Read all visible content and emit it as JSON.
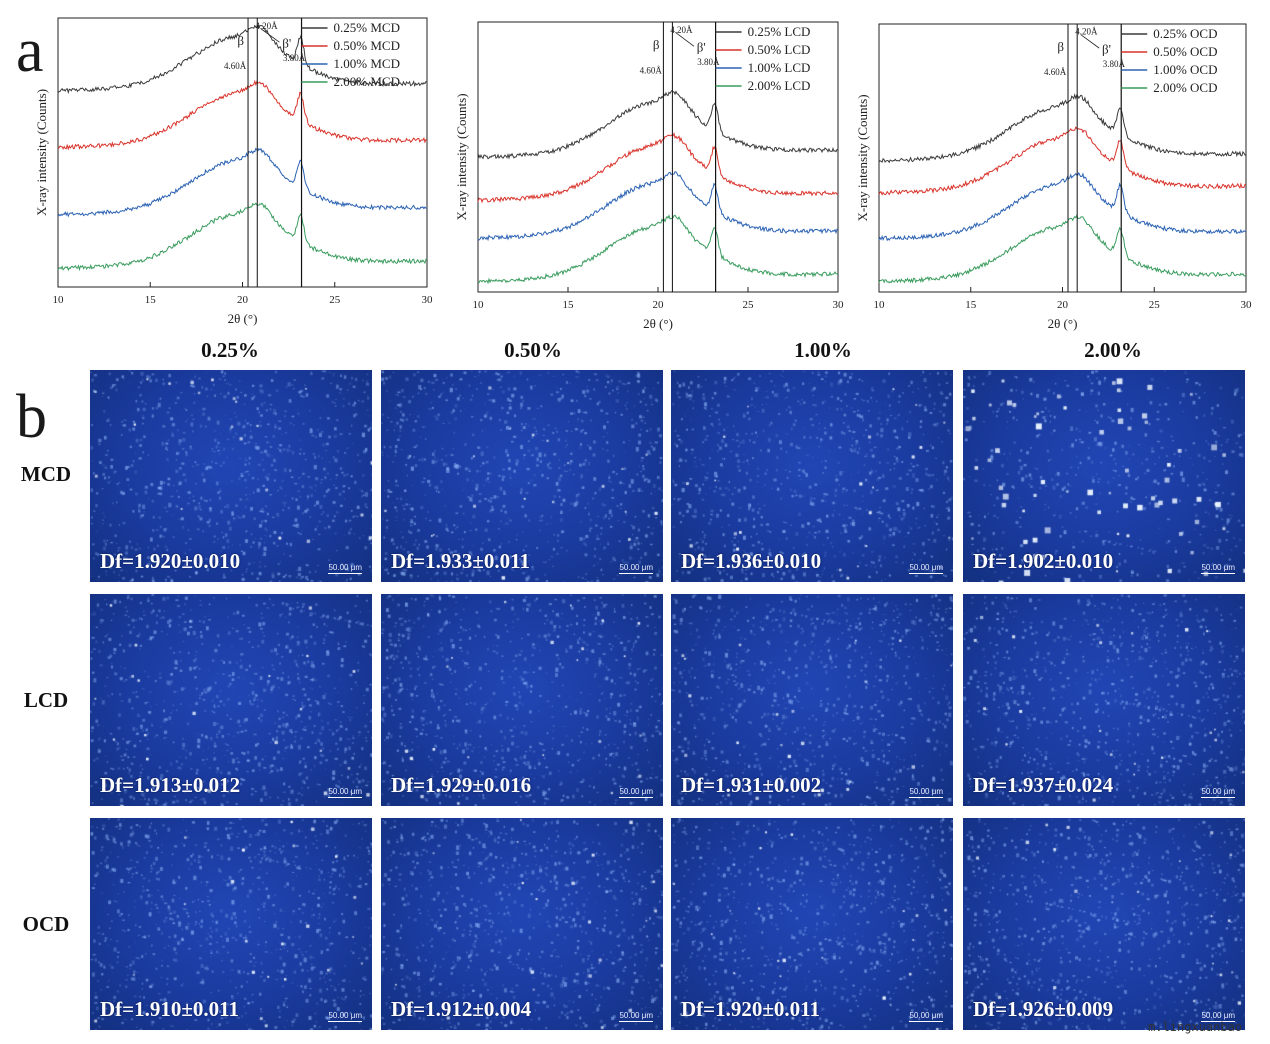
{
  "panel_a_label": "a",
  "panel_b_label": "b",
  "chart_data": [
    {
      "type": "line",
      "title": "",
      "xlabel": "2θ (°)",
      "ylabel": "X-ray intensity (Counts)",
      "xlim": [
        10,
        30
      ],
      "xticks": [
        "10",
        "15",
        "20",
        "25",
        "30"
      ],
      "reference_lines": [
        20.3,
        20.8,
        23.2
      ],
      "annotations": [
        "β",
        "4.60Å",
        "β'",
        "4.20Å",
        "3.80Å"
      ],
      "legend_position": "top-right",
      "series": [
        {
          "name": "0.25% MCD",
          "color": "#3b3b3b"
        },
        {
          "name": "0.50% MCD",
          "color": "#d9332b"
        },
        {
          "name": "1.00% MCD",
          "color": "#2b62b3"
        },
        {
          "name": "2.00% MCD",
          "color": "#3a9c5e"
        }
      ]
    },
    {
      "type": "line",
      "title": "",
      "xlabel": "2θ (°)",
      "ylabel": "X-ray intensity (Counts)",
      "xlim": [
        10,
        30
      ],
      "xticks": [
        "10",
        "15",
        "20",
        "25",
        "30"
      ],
      "reference_lines": [
        20.3,
        20.8,
        23.2
      ],
      "annotations": [
        "β",
        "4.60Å",
        "β'",
        "4.20Å",
        "3.80Å"
      ],
      "legend_position": "top-right",
      "series": [
        {
          "name": "0.25% LCD",
          "color": "#3b3b3b"
        },
        {
          "name": "0.50% LCD",
          "color": "#d9332b"
        },
        {
          "name": "1.00% LCD",
          "color": "#2b62b3"
        },
        {
          "name": "2.00% LCD",
          "color": "#3a9c5e"
        }
      ]
    },
    {
      "type": "line",
      "title": "",
      "xlabel": "2θ (°)",
      "ylabel": "X-ray intensity (Counts)",
      "xlim": [
        10,
        30
      ],
      "xticks": [
        "10",
        "15",
        "20",
        "25",
        "30"
      ],
      "reference_lines": [
        20.3,
        20.8,
        23.2
      ],
      "annotations": [
        "β",
        "4.60Å",
        "β'",
        "4.20Å",
        "3.80Å"
      ],
      "legend_position": "top-right",
      "series": [
        {
          "name": "0.25% OCD",
          "color": "#3b3b3b"
        },
        {
          "name": "0.50% OCD",
          "color": "#d9332b"
        },
        {
          "name": "1.00% OCD",
          "color": "#2b62b3"
        },
        {
          "name": "2.00% OCD",
          "color": "#3a9c5e"
        }
      ]
    }
  ],
  "micrographs": {
    "columns": [
      "0.25%",
      "0.50%",
      "1.00%",
      "2.00%"
    ],
    "rows": [
      {
        "name": "MCD",
        "df": [
          "Df=1.920±0.010",
          "Df=1.933±0.011",
          "Df=1.936±0.010",
          "Df=1.902±0.010"
        ]
      },
      {
        "name": "LCD",
        "df": [
          "Df=1.913±0.012",
          "Df=1.929±0.016",
          "Df=1.931±0.002",
          "Df=1.937±0.024"
        ]
      },
      {
        "name": "OCD",
        "df": [
          "Df=1.910±0.011",
          "Df=1.912±0.004",
          "Df=1.920±0.011",
          "Df=1.926±0.009"
        ]
      }
    ],
    "scale_bar": "50.00 μm"
  },
  "watermark": "m.lingxuanbao"
}
